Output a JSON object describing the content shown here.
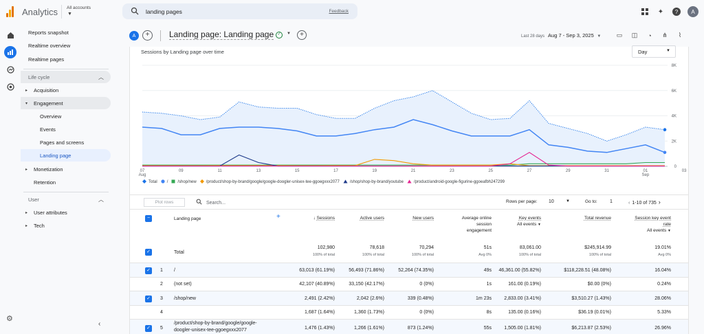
{
  "app": {
    "title": "Analytics",
    "account_label": "All accounts"
  },
  "search": {
    "query": "landing pages",
    "feedback": "Feedback"
  },
  "user": {
    "initial": "A"
  },
  "sidebar": {
    "items": [
      {
        "label": "Reports snapshot"
      },
      {
        "label": "Realtime overview"
      },
      {
        "label": "Realtime pages"
      }
    ],
    "lifecycle": "Life cycle",
    "acquisition": "Acquisition",
    "engagement": "Engagement",
    "engagement_items": [
      "Overview",
      "Events",
      "Pages and screens",
      "Landing page"
    ],
    "monetization": "Monetization",
    "retention": "Retention",
    "user": "User",
    "user_attributes": "User attributes",
    "tech": "Tech"
  },
  "header": {
    "avatar": "A",
    "title": "Landing page: Landing page",
    "date_label": "Last 28 days",
    "date_range": "Aug 7 - Sep 3, 2025"
  },
  "chart": {
    "title": "Sessions by Landing page over time",
    "granularity": "Day"
  },
  "chart_data": {
    "type": "line",
    "title": "Sessions by Landing page over time",
    "x": [
      "07 Aug",
      "08",
      "09",
      "10",
      "11",
      "12",
      "13",
      "14",
      "15",
      "16",
      "17",
      "18",
      "19",
      "20",
      "21",
      "22",
      "23",
      "24",
      "25",
      "26",
      "27",
      "28",
      "29",
      "30",
      "31",
      "01 Sep",
      "02",
      "03"
    ],
    "x_tick_labels": [
      "07",
      "09",
      "11",
      "13",
      "15",
      "17",
      "19",
      "21",
      "23",
      "25",
      "27",
      "29",
      "31",
      "01",
      "03"
    ],
    "x_tick_sublabels": {
      "07": "Aug",
      "01": "Sep"
    },
    "ylim": [
      0,
      8000
    ],
    "y_ticks": [
      "0",
      "2K",
      "4K",
      "6K",
      "8K"
    ],
    "grid": true,
    "legend_position": "bottom-left",
    "series": [
      {
        "name": "Total",
        "color": "#1a73e8",
        "style": "dotted-area",
        "values": [
          4300,
          4200,
          4000,
          3700,
          3900,
          5100,
          4700,
          4600,
          4600,
          4100,
          3800,
          3800,
          4600,
          5200,
          5500,
          6000,
          5100,
          4200,
          3700,
          3800,
          5200,
          3400,
          3000,
          2600,
          2000,
          2500,
          3100,
          2900
        ]
      },
      {
        "name": "/",
        "color": "#4285f4",
        "values": [
          3100,
          3000,
          2500,
          2500,
          3000,
          3100,
          3100,
          3000,
          2800,
          2400,
          2400,
          2600,
          2900,
          3100,
          3700,
          3300,
          2800,
          2400,
          2400,
          2400,
          2900,
          1700,
          1500,
          1200,
          1100,
          1400,
          1700,
          1100
        ]
      },
      {
        "name": "/shop/new",
        "color": "#34a853",
        "values": [
          100,
          100,
          100,
          100,
          100,
          100,
          100,
          100,
          100,
          100,
          100,
          100,
          100,
          100,
          100,
          100,
          100,
          100,
          100,
          100,
          200,
          200,
          200,
          200,
          200,
          200,
          300,
          300
        ]
      },
      {
        "name": "/product/shop-by-brand/google/google-doogler-unisex-tee-ggoegxxx2077",
        "color": "#f29900",
        "values": [
          50,
          50,
          50,
          50,
          60,
          60,
          60,
          60,
          50,
          50,
          60,
          60,
          550,
          450,
          200,
          100,
          100,
          100,
          100,
          200,
          50,
          50,
          50,
          50,
          50,
          50,
          50,
          50
        ]
      },
      {
        "name": "/shop/shop-by-brand/youtube",
        "color": "#1e3a8a",
        "values": [
          20,
          20,
          20,
          20,
          20,
          900,
          300,
          20,
          20,
          20,
          20,
          20,
          20,
          20,
          20,
          20,
          20,
          20,
          20,
          20,
          20,
          20,
          20,
          20,
          20,
          20,
          20,
          20
        ]
      },
      {
        "name": "/product/android-google-figurine-ggoeafbh247299",
        "color": "#e52592",
        "values": [
          20,
          20,
          20,
          20,
          20,
          20,
          20,
          20,
          20,
          20,
          20,
          20,
          20,
          20,
          20,
          20,
          20,
          20,
          20,
          200,
          1100,
          100,
          20,
          20,
          20,
          20,
          20,
          20
        ]
      }
    ]
  },
  "table_controls": {
    "plot_rows": "Plot rows",
    "search_placeholder": "Search...",
    "rows_per_page_label": "Rows per page:",
    "rows_per_page": "10",
    "goto_label": "Go to:",
    "goto_value": "1",
    "range": "1-10 of 735"
  },
  "table": {
    "headers": {
      "landing": "Landing page",
      "sessions": "Sessions",
      "active": "Active users",
      "new": "New users",
      "avg1": "Average online",
      "avg2": "session",
      "avg3": "engagement",
      "key": "Key events",
      "key_sub": "All events",
      "rev": "Total revenue",
      "rate1": "Session key event",
      "rate2": "rate",
      "rate_sub": "All events"
    },
    "totals": {
      "label": "Total",
      "sessions": "102,980",
      "sessions_sub": "100% of total",
      "active": "78,618",
      "active_sub": "100% of total",
      "new": "70,294",
      "new_sub": "100% of total",
      "avg": "51s",
      "avg_sub": "Avg 0%",
      "key": "83,061.00",
      "key_sub": "100% of total",
      "rev": "$245,914.99",
      "rev_sub": "100% of total",
      "rate": "19.01%",
      "rate_sub": "Avg 0%"
    },
    "rows": [
      {
        "idx": "1",
        "page": "/",
        "page2": "",
        "sessions": "63,013 (61.19%)",
        "active": "56,493 (71.86%)",
        "new": "52,264 (74.35%)",
        "avg": "49s",
        "key": "46,361.00 (55.82%)",
        "rev": "$118,228.51 (48.08%)",
        "rate": "16.04%"
      },
      {
        "idx": "2",
        "page": "(not set)",
        "page2": "",
        "sessions": "42,107 (40.89%)",
        "active": "33,150 (42.17%)",
        "new": "0 (0%)",
        "avg": "1s",
        "key": "161.00 (0.19%)",
        "rev": "$0.00 (0%)",
        "rate": "0.24%"
      },
      {
        "idx": "3",
        "page": "/shop/new",
        "page2": "",
        "sessions": "2,491 (2.42%)",
        "active": "2,042 (2.6%)",
        "new": "339 (0.48%)",
        "avg": "1m 23s",
        "key": "2,833.00 (3.41%)",
        "rev": "$3,510.27 (1.43%)",
        "rate": "28.06%"
      },
      {
        "idx": "4",
        "page": "",
        "page2": "",
        "sessions": "1,687 (1.64%)",
        "active": "1,360 (1.73%)",
        "new": "0 (0%)",
        "avg": "8s",
        "key": "135.00 (0.16%)",
        "rev": "$36.19 (0.01%)",
        "rate": "5.33%"
      },
      {
        "idx": "5",
        "page": "/product/shop-by-brand/google/google-",
        "page2": "doogler-unisex-tee-ggoegxxx2077",
        "sessions": "1,476 (1.43%)",
        "active": "1,266 (1.61%)",
        "new": "873 (1.24%)",
        "avg": "55s",
        "key": "1,505.00 (1.81%)",
        "rev": "$6,213.87 (2.53%)",
        "rate": "26.96%"
      }
    ]
  }
}
